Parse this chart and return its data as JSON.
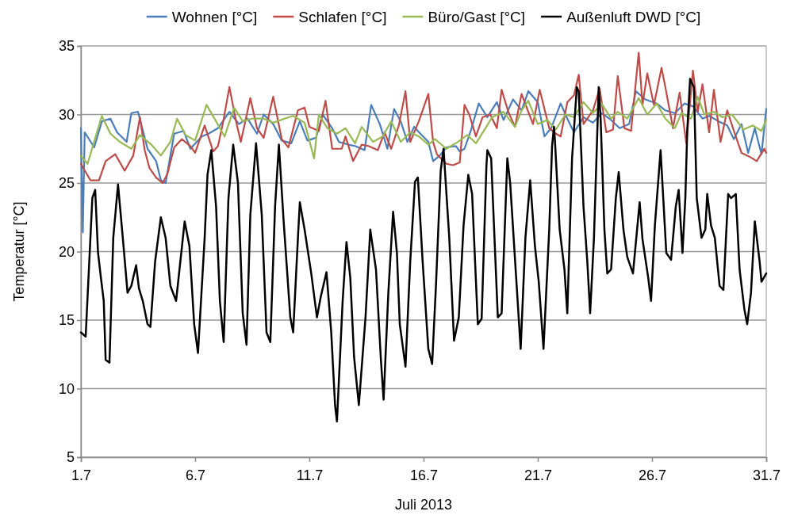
{
  "chart_data": {
    "type": "line",
    "xlabel": "Juli 2013",
    "ylabel": "Temperatur [°C]",
    "xlim": [
      "2013-07-01",
      "2013-07-31"
    ],
    "ylim": [
      5,
      35
    ],
    "xticks": [
      {
        "value": "2013-07-01",
        "label": "1.7"
      },
      {
        "value": "2013-07-06",
        "label": "6.7"
      },
      {
        "value": "2013-07-11",
        "label": "11.7"
      },
      {
        "value": "2013-07-16",
        "label": "16.7"
      },
      {
        "value": "2013-07-21",
        "label": "21.7"
      },
      {
        "value": "2013-07-26",
        "label": "26.7"
      },
      {
        "value": "2013-07-31",
        "label": "31.7"
      }
    ],
    "yticks": [
      5,
      10,
      15,
      20,
      25,
      30,
      35
    ],
    "grid": "y",
    "legend": "top",
    "marker": "none",
    "line_style": "solid",
    "series": [
      {
        "name": "Wohnen [°C]",
        "color": "#4a7ebb",
        "x": [
          "2013-07-01T00:00",
          "2013-07-01T02:00",
          "2013-07-01T04:00",
          "2013-07-01T14:00",
          "2013-07-01T22:00",
          "2013-07-02T07:00",
          "2013-07-02T14:00",
          "2013-07-03T00:00",
          "2013-07-03T05:00",
          "2013-07-03T12:00",
          "2013-07-03T22:00",
          "2013-07-04T07:00",
          "2013-07-04T12:00",
          "2013-07-04T17:00",
          "2013-07-05T02:00",
          "2013-07-05T12:00",
          "2013-07-05T19:00",
          "2013-07-06T07:00",
          "2013-07-06T14:00",
          "2013-07-07T00:00",
          "2013-07-07T12:00",
          "2013-07-07T22:00",
          "2013-07-08T07:00",
          "2013-07-08T17:00",
          "2013-07-09T00:00",
          "2013-07-09T10:00",
          "2013-07-09T19:00",
          "2013-07-10T05:00",
          "2013-07-10T14:00",
          "2013-07-10T22:00",
          "2013-07-11T07:00",
          "2013-07-11T14:00",
          "2013-07-12T00:00",
          "2013-07-12T07:00",
          "2013-07-12T17:00",
          "2013-07-13T00:00",
          "2013-07-13T10:00",
          "2013-07-13T17:00",
          "2013-07-14T02:00",
          "2013-07-14T10:00",
          "2013-07-14T17:00",
          "2013-07-15T00:00",
          "2013-07-15T07:00",
          "2013-07-15T14:00",
          "2013-07-15T22:00",
          "2013-07-16T05:00",
          "2013-07-16T10:00",
          "2013-07-16T17:00",
          "2013-07-17T00:00",
          "2013-07-17T10:00",
          "2013-07-17T14:00",
          "2013-07-17T19:00",
          "2013-07-18T02:00",
          "2013-07-18T10:00",
          "2013-07-18T19:00",
          "2013-07-19T05:00",
          "2013-07-19T12:00",
          "2013-07-19T22:00",
          "2013-07-20T07:00",
          "2013-07-20T14:00",
          "2013-07-21T00:00",
          "2013-07-21T07:00",
          "2013-07-21T14:00",
          "2013-07-22T00:00",
          "2013-07-22T07:00",
          "2013-07-22T14:00",
          "2013-07-23T00:00",
          "2013-07-23T10:00",
          "2013-07-23T19:00",
          "2013-07-24T05:00",
          "2013-07-24T14:00",
          "2013-07-25T00:00",
          "2013-07-25T07:00",
          "2013-07-25T17:00",
          "2013-07-26T05:00",
          "2013-07-26T14:00",
          "2013-07-27T00:00",
          "2013-07-27T10:00",
          "2013-07-27T19:00",
          "2013-07-28T05:00",
          "2013-07-28T12:00",
          "2013-07-28T22:00",
          "2013-07-29T07:00",
          "2013-07-29T14:00",
          "2013-07-29T22:00",
          "2013-07-30T05:00",
          "2013-07-30T12:00",
          "2013-07-30T19:00",
          "2013-07-31T00:00"
        ],
        "values": [
          29.0,
          21.4,
          28.7,
          27.6,
          29.5,
          29.7,
          28.7,
          28.0,
          30.1,
          30.2,
          27.5,
          26.6,
          25.2,
          25.0,
          28.6,
          28.8,
          27.5,
          28.4,
          28.6,
          29.0,
          30.2,
          29.3,
          29.7,
          28.6,
          30.0,
          29.3,
          28.1,
          27.9,
          29.5,
          28.1,
          28.3,
          30.0,
          29.0,
          28.0,
          27.8,
          27.7,
          27.4,
          30.7,
          29.3,
          27.5,
          30.4,
          29.5,
          28.0,
          29.1,
          28.5,
          28.0,
          26.6,
          27.0,
          27.6,
          27.7,
          27.3,
          27.5,
          28.9,
          30.8,
          29.8,
          30.9,
          29.6,
          31.1,
          30.3,
          31.7,
          30.9,
          28.4,
          29.0,
          30.8,
          29.7,
          28.7,
          29.8,
          29.4,
          30.1,
          29.6,
          29.0,
          29.3,
          31.7,
          31.1,
          30.8,
          30.3,
          30.1,
          30.8,
          30.6,
          29.7,
          29.9,
          29.5,
          29.2,
          28.2,
          29.3,
          27.2,
          29.0,
          27.1,
          30.4
        ]
      },
      {
        "name": "Schlafen [°C]",
        "color": "#be4b48",
        "x": [
          "2013-07-01T00:00",
          "2013-07-01T10:00",
          "2013-07-01T19:00",
          "2013-07-02T02:00",
          "2013-07-02T12:00",
          "2013-07-02T22:00",
          "2013-07-03T07:00",
          "2013-07-03T14:00",
          "2013-07-03T19:00",
          "2013-07-04T00:00",
          "2013-07-04T07:00",
          "2013-07-04T14:00",
          "2013-07-04T19:00",
          "2013-07-05T02:00",
          "2013-07-05T10:00",
          "2013-07-05T19:00",
          "2013-07-06T00:00",
          "2013-07-06T10:00",
          "2013-07-06T19:00",
          "2013-07-07T00:00",
          "2013-07-07T05:00",
          "2013-07-07T12:00",
          "2013-07-07T19:00",
          "2013-07-08T00:00",
          "2013-07-08T10:00",
          "2013-07-08T17:00",
          "2013-07-09T00:00",
          "2013-07-09T10:00",
          "2013-07-09T19:00",
          "2013-07-10T02:00",
          "2013-07-10T12:00",
          "2013-07-10T19:00",
          "2013-07-11T00:00",
          "2013-07-11T10:00",
          "2013-07-11T17:00",
          "2013-07-12T00:00",
          "2013-07-12T10:00",
          "2013-07-12T14:00",
          "2013-07-12T22:00",
          "2013-07-13T07:00",
          "2013-07-13T14:00",
          "2013-07-14T00:00",
          "2013-07-14T07:00",
          "2013-07-14T14:00",
          "2013-07-14T22:00",
          "2013-07-15T05:00",
          "2013-07-15T10:00",
          "2013-07-15T19:00",
          "2013-07-16T05:00",
          "2013-07-16T10:00",
          "2013-07-16T14:00",
          "2013-07-17T00:00",
          "2013-07-17T07:00",
          "2013-07-17T14:00",
          "2013-07-17T19:00",
          "2013-07-18T00:00",
          "2013-07-18T07:00",
          "2013-07-18T14:00",
          "2013-07-18T22:00",
          "2013-07-19T05:00",
          "2013-07-19T10:00",
          "2013-07-19T17:00",
          "2013-07-20T00:00",
          "2013-07-20T07:00",
          "2013-07-20T14:00",
          "2013-07-20T19:00",
          "2013-07-21T02:00",
          "2013-07-21T12:00",
          "2013-07-21T19:00",
          "2013-07-22T00:00",
          "2013-07-22T07:00",
          "2013-07-22T14:00",
          "2013-07-22T19:00",
          "2013-07-23T00:00",
          "2013-07-23T10:00",
          "2013-07-23T17:00",
          "2013-07-24T00:00",
          "2013-07-24T07:00",
          "2013-07-24T12:00",
          "2013-07-24T19:00",
          "2013-07-25T02:00",
          "2013-07-25T10:00",
          "2013-07-25T14:00",
          "2013-07-25T19:00",
          "2013-07-26T02:00",
          "2013-07-26T10:00",
          "2013-07-26T14:00",
          "2013-07-26T22:00",
          "2013-07-27T05:00",
          "2013-07-27T12:00",
          "2013-07-27T19:00",
          "2013-07-28T00:00",
          "2013-07-28T05:00",
          "2013-07-28T12:00",
          "2013-07-28T17:00",
          "2013-07-29T00:00",
          "2013-07-29T07:00",
          "2013-07-29T14:00",
          "2013-07-29T22:00",
          "2013-07-30T07:00",
          "2013-07-30T14:00",
          "2013-07-30T22:00",
          "2013-07-31T00:00"
        ],
        "values": [
          26.4,
          25.2,
          25.2,
          26.6,
          27.1,
          25.9,
          27.0,
          29.8,
          27.4,
          26.1,
          25.4,
          25.0,
          25.7,
          27.6,
          28.2,
          27.7,
          27.2,
          29.2,
          27.3,
          27.7,
          29.3,
          32.0,
          29.5,
          28.0,
          31.2,
          29.0,
          28.3,
          31.3,
          28.2,
          27.6,
          30.3,
          30.5,
          29.1,
          28.8,
          31.0,
          27.5,
          27.5,
          28.4,
          26.6,
          27.8,
          27.7,
          27.4,
          28.7,
          27.5,
          29.2,
          31.7,
          28.0,
          29.5,
          31.5,
          28.0,
          27.1,
          26.4,
          26.3,
          26.5,
          30.7,
          30.0,
          28.4,
          29.8,
          30.0,
          29.0,
          31.8,
          30.2,
          29.1,
          31.5,
          30.2,
          29.3,
          31.8,
          29.0,
          28.6,
          28.4,
          30.9,
          31.4,
          32.9,
          29.3,
          30.3,
          31.9,
          28.7,
          28.9,
          32.8,
          29.0,
          28.8,
          34.5,
          30.7,
          33.0,
          30.7,
          33.4,
          32.0,
          29.0,
          31.6,
          27.9,
          33.2,
          30.2,
          32.2,
          28.7,
          31.8,
          28.0,
          30.3,
          28.8,
          27.2,
          26.9,
          26.6,
          27.5,
          27.2
        ]
      },
      {
        "name": "Büro/Gast [°C]",
        "color": "#98b954",
        "x": [
          "2013-07-01T00:00",
          "2013-07-01T07:00",
          "2013-07-01T22:00",
          "2013-07-02T07:00",
          "2013-07-02T17:00",
          "2013-07-03T05:00",
          "2013-07-03T14:00",
          "2013-07-04T02:00",
          "2013-07-04T12:00",
          "2013-07-04T22:00",
          "2013-07-05T05:00",
          "2013-07-05T14:00",
          "2013-07-06T00:00",
          "2013-07-06T12:00",
          "2013-07-06T22:00",
          "2013-07-07T07:00",
          "2013-07-07T17:00",
          "2013-07-08T02:00",
          "2013-07-08T12:00",
          "2013-07-09T00:00",
          "2013-07-09T10:00",
          "2013-07-09T22:00",
          "2013-07-10T07:00",
          "2013-07-10T19:00",
          "2013-07-11T05:00",
          "2013-07-11T10:00",
          "2013-07-11T19:00",
          "2013-07-12T05:00",
          "2013-07-12T14:00",
          "2013-07-13T00:00",
          "2013-07-13T07:00",
          "2013-07-13T19:00",
          "2013-07-14T05:00",
          "2013-07-14T14:00",
          "2013-07-15T00:00",
          "2013-07-15T10:00",
          "2013-07-15T19:00",
          "2013-07-16T05:00",
          "2013-07-16T12:00",
          "2013-07-17T00:00",
          "2013-07-17T12:00",
          "2013-07-17T22:00",
          "2013-07-18T07:00",
          "2013-07-18T17:00",
          "2013-07-19T00:00",
          "2013-07-19T12:00",
          "2013-07-20T00:00",
          "2013-07-20T07:00",
          "2013-07-20T14:00",
          "2013-07-21T00:00",
          "2013-07-21T10:00",
          "2013-07-21T19:00",
          "2013-07-22T05:00",
          "2013-07-22T14:00",
          "2013-07-23T00:00",
          "2013-07-23T10:00",
          "2013-07-23T19:00",
          "2013-07-24T05:00",
          "2013-07-24T12:00",
          "2013-07-24T22:00",
          "2013-07-25T10:00",
          "2013-07-25T19:00",
          "2013-07-26T05:00",
          "2013-07-26T14:00",
          "2013-07-27T00:00",
          "2013-07-27T07:00",
          "2013-07-27T17:00",
          "2013-07-28T00:00",
          "2013-07-28T07:00",
          "2013-07-28T17:00",
          "2013-07-29T02:00",
          "2013-07-29T12:00",
          "2013-07-30T00:00",
          "2013-07-30T10:00",
          "2013-07-30T19:00",
          "2013-07-31T00:00"
        ],
        "values": [
          27.0,
          26.4,
          29.9,
          28.6,
          28.0,
          27.5,
          28.5,
          27.8,
          27.0,
          28.0,
          29.7,
          28.5,
          28.1,
          30.7,
          29.5,
          28.4,
          30.5,
          29.5,
          29.7,
          29.7,
          29.4,
          29.7,
          29.9,
          29.4,
          26.8,
          30.0,
          29.0,
          28.6,
          29.0,
          27.9,
          29.1,
          28.0,
          28.4,
          29.5,
          28.0,
          28.7,
          28.4,
          27.8,
          28.2,
          27.5,
          28.0,
          28.5,
          27.9,
          29.0,
          29.8,
          30.2,
          29.1,
          30.3,
          31.0,
          29.3,
          29.6,
          28.9,
          30.0,
          29.8,
          30.9,
          30.1,
          30.8,
          29.7,
          30.2,
          29.7,
          31.2,
          30.0,
          30.8,
          29.7,
          29.0,
          30.1,
          29.7,
          31.3,
          30.0,
          30.2,
          29.8,
          30.0,
          28.9,
          29.2,
          28.8,
          29.6
        ]
      },
      {
        "name": "Außenluft DWD [°C]",
        "color": "#000000",
        "x": [
          "2013-07-01T00:00",
          "2013-07-01T05:00",
          "2013-07-01T12:00",
          "2013-07-01T15:00",
          "2013-07-01T18:00",
          "2013-07-01T21:00",
          "2013-07-02T00:00",
          "2013-07-02T02:00",
          "2013-07-02T06:00",
          "2013-07-02T10:00",
          "2013-07-02T15:00",
          "2013-07-02T20:00",
          "2013-07-03T01:00",
          "2013-07-03T05:00",
          "2013-07-03T10:00",
          "2013-07-03T13:00",
          "2013-07-03T17:00",
          "2013-07-03T22:00",
          "2013-07-04T01:00",
          "2013-07-04T06:00",
          "2013-07-04T12:00",
          "2013-07-04T17:00",
          "2013-07-04T22:00",
          "2013-07-05T04:00",
          "2013-07-05T13:00",
          "2013-07-05T18:00",
          "2013-07-05T23:00",
          "2013-07-06T03:00",
          "2013-07-06T10:00",
          "2013-07-06T13:00",
          "2013-07-06T17:00",
          "2013-07-06T22:00",
          "2013-07-07T02:00",
          "2013-07-07T06:00",
          "2013-07-07T11:00",
          "2013-07-07T16:00",
          "2013-07-07T21:00",
          "2013-07-08T02:00",
          "2013-07-08T06:00",
          "2013-07-08T10:00",
          "2013-07-08T16:00",
          "2013-07-08T22:00",
          "2013-07-09T03:00",
          "2013-07-09T07:00",
          "2013-07-09T12:00",
          "2013-07-09T16:00",
          "2013-07-09T21:00",
          "2013-07-10T04:00",
          "2013-07-10T07:00",
          "2013-07-10T12:00",
          "2013-07-10T14:00",
          "2013-07-10T19:00",
          "2013-07-11T02:00",
          "2013-07-11T08:00",
          "2013-07-11T12:00",
          "2013-07-11T18:00",
          "2013-07-11T23:00",
          "2013-07-12T03:00",
          "2013-07-12T05:00",
          "2013-07-12T11:00",
          "2013-07-12T15:00",
          "2013-07-12T19:00",
          "2013-07-12T23:00",
          "2013-07-13T04:00",
          "2013-07-13T11:00",
          "2013-07-13T16:00",
          "2013-07-13T22:00",
          "2013-07-14T03:00",
          "2013-07-14T06:00",
          "2013-07-14T11:00",
          "2013-07-14T16:00",
          "2013-07-14T20:00",
          "2013-07-14T23:00",
          "2013-07-15T05:00",
          "2013-07-15T10:00",
          "2013-07-15T15:00",
          "2013-07-15T18:00",
          "2013-07-15T23:00",
          "2013-07-16T05:00",
          "2013-07-16T09:00",
          "2013-07-16T13:00",
          "2013-07-16T18:00",
          "2013-07-16T21:00",
          "2013-07-17T03:00",
          "2013-07-17T08:00",
          "2013-07-17T13:00",
          "2013-07-17T18:00",
          "2013-07-17T23:00",
          "2013-07-18T03:00",
          "2013-07-18T09:00",
          "2013-07-18T13:00",
          "2013-07-18T18:00",
          "2013-07-18T19:00",
          "2013-07-18T23:00",
          "2013-07-19T06:00",
          "2013-07-19T10:00",
          "2013-07-19T16:00",
          "2013-07-19T19:00",
          "2013-07-20T01:00",
          "2013-07-20T06:00",
          "2013-07-20T11:00",
          "2013-07-20T16:00",
          "2013-07-20T21:00",
          "2013-07-21T01:00",
          "2013-07-21T06:00",
          "2013-07-21T12:00",
          "2013-07-21T15:00",
          "2013-07-21T17:00",
          "2013-07-21T18:00",
          "2013-07-21T23:00",
          "2013-07-22T04:00",
          "2013-07-22T07:00",
          "2013-07-22T12:00",
          "2013-07-22T17:00",
          "2013-07-22T19:00",
          "2013-07-23T00:00",
          "2013-07-23T04:00",
          "2013-07-23T07:00",
          "2013-07-23T11:00",
          "2013-07-23T16:00",
          "2013-07-23T18:00",
          "2013-07-23T22:00",
          "2013-07-24T01:00",
          "2013-07-24T05:00",
          "2013-07-24T10:00",
          "2013-07-24T13:00",
          "2013-07-24T18:00",
          "2013-07-24T22:00",
          "2013-07-25T04:00",
          "2013-07-25T11:00",
          "2013-07-25T14:00",
          "2013-07-25T20:00",
          "2013-07-25T23:00",
          "2013-07-26T03:00",
          "2013-07-26T09:00",
          "2013-07-26T15:00",
          "2013-07-26T20:00",
          "2013-07-27T01:00",
          "2013-07-27T04:00",
          "2013-07-27T08:00",
          "2013-07-27T11:00",
          "2013-07-27T13:00",
          "2013-07-27T16:00",
          "2013-07-27T20:00",
          "2013-07-27T23:00",
          "2013-07-28T04:00",
          "2013-07-28T08:00",
          "2013-07-28T10:00",
          "2013-07-28T14:00",
          "2013-07-28T18:00",
          "2013-07-28T23:00",
          "2013-07-29T03:00",
          "2013-07-29T08:00",
          "2013-07-29T11:00",
          "2013-07-29T16:00",
          "2013-07-29T20:00",
          "2013-07-30T01:00",
          "2013-07-30T04:00",
          "2013-07-30T08:00",
          "2013-07-30T12:00",
          "2013-07-30T17:00",
          "2013-07-30T19:00",
          "2013-07-31T00:00"
        ],
        "values": [
          14.1,
          13.8,
          23.9,
          24.5,
          19.9,
          18.1,
          16.4,
          12.1,
          11.9,
          21.0,
          24.9,
          21.0,
          17.0,
          17.5,
          19.0,
          17.3,
          16.4,
          14.7,
          14.5,
          19.3,
          22.5,
          21.0,
          17.5,
          16.4,
          22.2,
          20.4,
          14.7,
          12.6,
          21.0,
          25.6,
          27.4,
          23.3,
          16.4,
          13.4,
          23.9,
          27.8,
          25.0,
          15.5,
          13.2,
          22.7,
          27.9,
          22.7,
          14.1,
          13.4,
          23.3,
          27.8,
          22.2,
          15.2,
          14.1,
          21.0,
          23.6,
          21.6,
          18.4,
          15.2,
          16.7,
          18.5,
          14.1,
          8.8,
          7.6,
          16.4,
          20.7,
          18.1,
          12.3,
          8.8,
          15.2,
          21.6,
          18.7,
          12.3,
          9.2,
          17.0,
          22.9,
          19.9,
          14.7,
          11.6,
          19.3,
          25.1,
          25.4,
          19.3,
          12.9,
          11.8,
          17.5,
          25.9,
          27.5,
          21.0,
          13.5,
          15.2,
          21.9,
          25.6,
          24.2,
          14.7,
          15.1,
          26.2,
          27.4,
          26.8,
          15.2,
          15.5,
          26.8,
          25.0,
          18.4,
          12.9,
          21.0,
          25.2,
          20.4,
          17.8,
          12.9,
          21.6,
          27.7,
          29.1,
          28.1,
          21.6,
          18.7,
          15.5,
          26.8,
          32.0,
          31.7,
          23.3,
          19.3,
          15.5,
          21.0,
          32.0,
          29.7,
          21.6,
          18.4,
          18.7,
          23.9,
          25.8,
          21.6,
          19.6,
          18.4,
          23.6,
          20.9,
          18.1,
          16.4,
          21.9,
          27.4,
          19.9,
          19.4,
          23.3,
          24.5,
          19.9,
          23.9,
          28.8,
          32.6,
          32.0,
          23.9,
          21.0,
          21.6,
          24.2,
          21.9,
          21.0,
          17.5,
          17.2,
          24.2,
          23.9,
          24.2,
          18.7,
          15.8,
          14.7,
          17.0,
          22.2,
          19.3,
          17.8,
          18.4
        ]
      }
    ]
  }
}
